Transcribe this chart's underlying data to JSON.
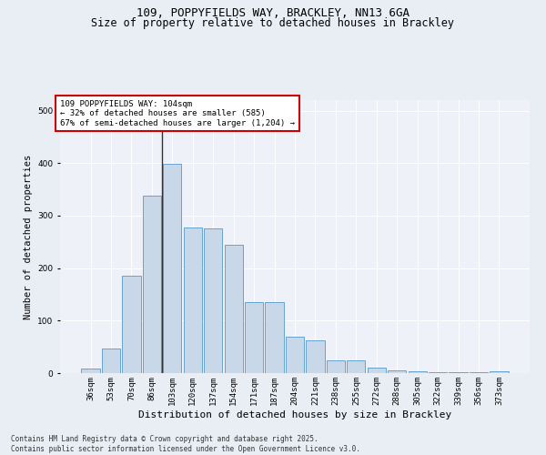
{
  "title": "109, POPPYFIELDS WAY, BRACKLEY, NN13 6GA",
  "subtitle": "Size of property relative to detached houses in Brackley",
  "xlabel": "Distribution of detached houses by size in Brackley",
  "ylabel": "Number of detached properties",
  "categories": [
    "36sqm",
    "53sqm",
    "70sqm",
    "86sqm",
    "103sqm",
    "120sqm",
    "137sqm",
    "154sqm",
    "171sqm",
    "187sqm",
    "204sqm",
    "221sqm",
    "238sqm",
    "255sqm",
    "272sqm",
    "288sqm",
    "305sqm",
    "322sqm",
    "339sqm",
    "356sqm",
    "373sqm"
  ],
  "values": [
    8,
    46,
    185,
    338,
    398,
    277,
    276,
    245,
    135,
    135,
    69,
    62,
    25,
    25,
    11,
    5,
    4,
    2,
    1,
    1,
    3
  ],
  "bar_color": "#c8d8e8",
  "bar_edge_color": "#5599cc",
  "vline_x_index": 4,
  "vline_color": "#333333",
  "property_line_label": "109 POPPYFIELDS WAY: 104sqm",
  "annotation_line1": "← 32% of detached houses are smaller (585)",
  "annotation_line2": "67% of semi-detached houses are larger (1,204) →",
  "annotation_box_color": "#ffffff",
  "annotation_box_edge": "#cc0000",
  "background_color": "#e8eef4",
  "plot_background_color": "#eef2f8",
  "grid_color": "#ffffff",
  "footer": "Contains HM Land Registry data © Crown copyright and database right 2025.\nContains public sector information licensed under the Open Government Licence v3.0.",
  "ylim": [
    0,
    520
  ],
  "title_fontsize": 9,
  "subtitle_fontsize": 8.5,
  "xlabel_fontsize": 8,
  "ylabel_fontsize": 7.5,
  "tick_fontsize": 6.5,
  "footer_fontsize": 5.5,
  "annotation_fontsize": 6.5
}
